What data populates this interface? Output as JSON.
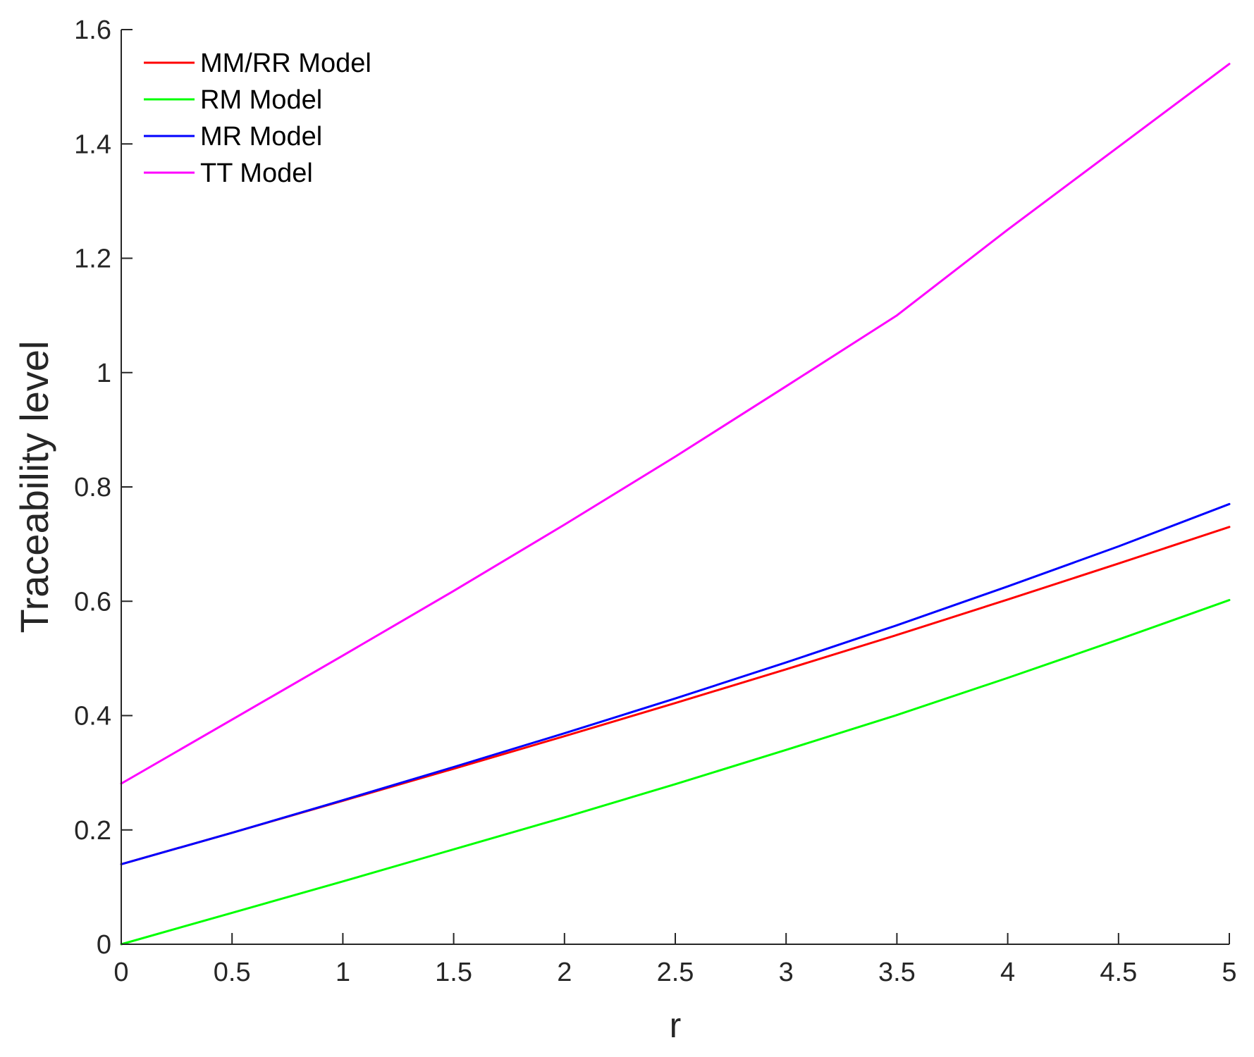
{
  "chart_data": {
    "type": "line",
    "title": "",
    "xlabel": "r",
    "ylabel": "Traceability level",
    "xlim": [
      0,
      5
    ],
    "ylim": [
      0,
      1.6
    ],
    "xticks": [
      0,
      0.5,
      1,
      1.5,
      2,
      2.5,
      3,
      3.5,
      4,
      4.5,
      5
    ],
    "xtick_labels": [
      "0",
      "0.5",
      "1",
      "1.5",
      "2",
      "2.5",
      "3",
      "3.5",
      "4",
      "4.5",
      "5"
    ],
    "yticks": [
      0,
      0.2,
      0.4,
      0.6,
      0.8,
      1,
      1.2,
      1.4,
      1.6
    ],
    "ytick_labels": [
      "0",
      "0.2",
      "0.4",
      "0.6",
      "0.8",
      "1",
      "1.2",
      "1.4",
      "1.6"
    ],
    "grid": false,
    "legend_position": "top-left",
    "x": [
      0,
      0.5,
      1,
      1.5,
      2,
      2.5,
      3,
      3.5,
      4,
      4.5,
      5
    ],
    "series": [
      {
        "name": "MM/RR Model",
        "color": "#ff0000",
        "values": [
          0.14,
          0.195,
          0.251,
          0.307,
          0.364,
          0.422,
          0.481,
          0.541,
          0.603,
          0.666,
          0.73
        ]
      },
      {
        "name": "RM Model",
        "color": "#00ff00",
        "values": [
          0.0,
          0.055,
          0.11,
          0.166,
          0.222,
          0.28,
          0.34,
          0.401,
          0.466,
          0.533,
          0.602
        ]
      },
      {
        "name": "MR Model",
        "color": "#0000ff",
        "values": [
          0.14,
          0.195,
          0.252,
          0.31,
          0.369,
          0.43,
          0.493,
          0.558,
          0.626,
          0.696,
          0.77
        ]
      },
      {
        "name": "TT Model",
        "color": "#ff00ff",
        "values": [
          0.281,
          0.393,
          0.505,
          0.618,
          0.734,
          0.853,
          0.976,
          1.1,
          1.25,
          1.395,
          1.54
        ]
      }
    ]
  }
}
